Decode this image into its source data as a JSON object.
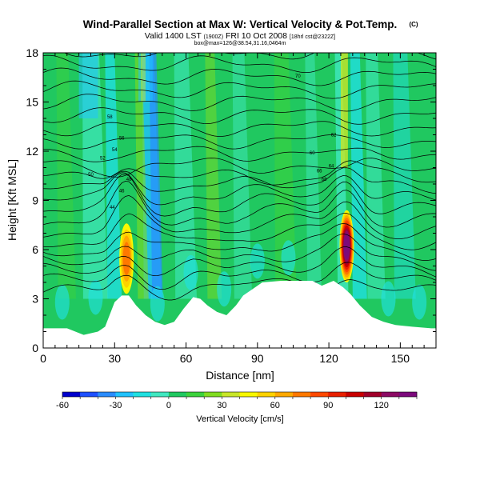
{
  "title": "Wind-Parallel Section at Max W: Vertical Velocity & Pot.Temp.",
  "title_mark": "(C)",
  "valid_line": "Valid 1400 LST",
  "valid_time_small": "(1900Z)",
  "valid_date": "FRI 10 Oct 2008",
  "valid_run_small": "[18hrl cst@2322Z]",
  "location_line": "box@max=126@38.54,31.16,0464m",
  "chart_data": {
    "type": "heatmap",
    "xlabel": "Distance [nm]",
    "ylabel": "Height [Kft MSL]",
    "xlim": [
      0,
      165
    ],
    "ylim": [
      0,
      18
    ],
    "xticks": [
      "0",
      "30",
      "60",
      "90",
      "120",
      "150"
    ],
    "yticks": [
      "0",
      "3",
      "6",
      "9",
      "12",
      "15",
      "18"
    ],
    "terrain": [
      [
        0,
        1.2
      ],
      [
        10,
        1.2
      ],
      [
        17,
        0.8
      ],
      [
        23,
        1.0
      ],
      [
        26,
        1.3
      ],
      [
        30,
        2.8
      ],
      [
        33,
        3.2
      ],
      [
        36,
        3.2
      ],
      [
        39,
        2.6
      ],
      [
        43,
        2.0
      ],
      [
        47,
        1.6
      ],
      [
        51,
        1.4
      ],
      [
        55,
        1.6
      ],
      [
        59,
        2.4
      ],
      [
        63,
        3.1
      ],
      [
        66,
        3.0
      ],
      [
        69,
        2.6
      ],
      [
        73,
        2.2
      ],
      [
        77,
        2.0
      ],
      [
        81,
        2.6
      ],
      [
        84,
        3.2
      ],
      [
        88,
        3.6
      ],
      [
        92,
        4.0
      ],
      [
        100,
        4.1
      ],
      [
        107,
        4.1
      ],
      [
        113,
        4.1
      ],
      [
        117,
        3.8
      ],
      [
        122,
        4.1
      ],
      [
        126,
        3.7
      ],
      [
        129,
        3.3
      ],
      [
        133,
        2.6
      ],
      [
        138,
        1.9
      ],
      [
        143,
        1.6
      ],
      [
        148,
        1.4
      ],
      [
        155,
        1.3
      ],
      [
        163,
        1.2
      ],
      [
        165,
        1.2
      ]
    ],
    "updrafts": [
      {
        "x": 35,
        "z_bottom": 3.3,
        "z_top": 7.6,
        "w_max": 70
      },
      {
        "x": 127.5,
        "z_bottom": 4.0,
        "z_top": 8.4,
        "w_max": 130
      }
    ],
    "colorbar": {
      "label": "Vertical Velocity [cm/s]",
      "min": -60,
      "max": 140,
      "step": 10,
      "ticks": [
        "-60",
        "-30",
        "0",
        "30",
        "60",
        "90",
        "120"
      ],
      "colors": [
        "#0000cc",
        "#1e50ff",
        "#2a8cff",
        "#21c2ff",
        "#20e0e0",
        "#40e8c0",
        "#20c860",
        "#3cd23c",
        "#80dc20",
        "#c8e628",
        "#f8f800",
        "#ffd200",
        "#ffa800",
        "#ff7800",
        "#ff4800",
        "#e82000",
        "#c80000",
        "#a0002a",
        "#8c0a64",
        "#7c0a7c"
      ]
    },
    "contour_labels": [
      "58",
      "56",
      "54",
      "52",
      "50",
      "48",
      "46",
      "44",
      "62",
      "60",
      "64",
      "66",
      "68",
      "70"
    ]
  }
}
